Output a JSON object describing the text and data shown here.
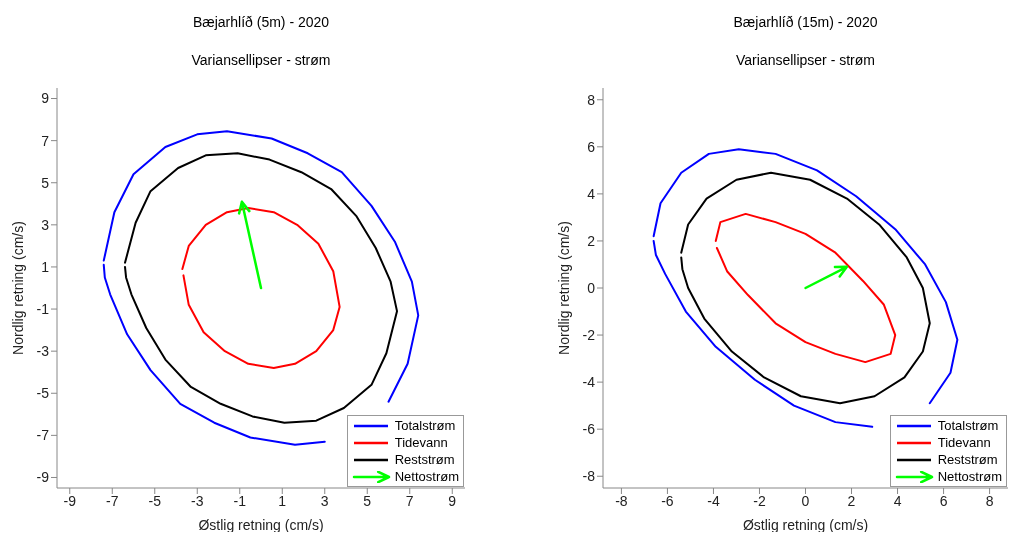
{
  "chart_data": [
    {
      "type": "line",
      "title": "Bæjarhlíð (5m) - 2020",
      "subtitle": "Variansellipser - strøm",
      "xlabel": "Østlig retning (cm/s)",
      "ylabel": "Nordlig retning (cm/s)",
      "xlim": [
        -9.6,
        9.6
      ],
      "ylim": [
        -9.5,
        9.5
      ],
      "xticks": [
        -9,
        -7,
        -5,
        -3,
        -1,
        1,
        3,
        5,
        7,
        9
      ],
      "yticks": [
        -9,
        -7,
        -5,
        -3,
        -1,
        1,
        3,
        5,
        7,
        9
      ],
      "grid": false,
      "legend": "bottom right",
      "marker": "none",
      "line_style": "solid",
      "series": [
        {
          "name": "Nettostrøm",
          "color": "#00ff00",
          "x": [
            0,
            -0.9
          ],
          "values": [
            0,
            4.1
          ]
        },
        {
          "name": "Totalstrøm",
          "color": "#0000ff",
          "x": [
            -7.4,
            -6.9,
            -6,
            -4.5,
            -3,
            -1.6,
            0.5,
            2.2,
            3.8,
            5.2,
            6.3,
            7.1,
            7.4,
            6.9,
            6,
            4.5,
            3,
            1.6,
            -0.5,
            -2.2,
            -3.8,
            -5.2,
            -6.3,
            -7.1,
            -7.35,
            -7.4
          ],
          "values": [
            1.3,
            3.6,
            5.4,
            6.7,
            7.3,
            7.45,
            7.1,
            6.4,
            5.5,
            3.9,
            2.2,
            0.3,
            -1.3,
            -3.6,
            -5.4,
            null,
            -7.3,
            -7.45,
            -7.1,
            -6.4,
            -5.5,
            -3.9,
            -2.2,
            -0.3,
            0.5,
            1.1
          ]
        },
        {
          "name": "Tidevann",
          "color": "#ff0000",
          "x": [
            -3.7,
            -3.4,
            -2.6,
            -1.6,
            -0.6,
            0.6,
            1.7,
            2.7,
            3.4,
            3.7,
            3.4,
            2.6,
            1.6,
            0.6,
            -0.6,
            -1.7,
            -2.7,
            -3.4,
            -3.65
          ],
          "values": [
            0.9,
            2,
            3,
            3.6,
            3.8,
            3.6,
            3,
            2.1,
            0.8,
            -0.9,
            -2,
            -3,
            -3.6,
            -3.8,
            -3.6,
            -3,
            -2.1,
            -0.8,
            0.6
          ]
        },
        {
          "name": "Reststrøm",
          "color": "#000000",
          "x": [
            -6.4,
            -5.9,
            -5.2,
            -3.9,
            -2.6,
            -1.1,
            0.4,
            1.9,
            3.3,
            4.5,
            5.4,
            6.1,
            6.4,
            5.9,
            5.2,
            3.9,
            2.6,
            1.1,
            -0.4,
            -1.9,
            -3.3,
            -4.5,
            -5.4,
            -6.1,
            -6.35,
            -6.4
          ],
          "values": [
            1.2,
            3.1,
            4.6,
            5.7,
            6.3,
            6.4,
            6.1,
            5.5,
            4.7,
            3.4,
            1.9,
            0.3,
            -1.1,
            -3.1,
            -4.6,
            -5.7,
            -6.3,
            -6.4,
            -6.1,
            -5.5,
            -4.7,
            -3.4,
            -1.9,
            -0.3,
            0.5,
            1
          ]
        }
      ]
    },
    {
      "type": "line",
      "title": "Bæjarhlíð (15m) - 2020",
      "subtitle": "Variansellipser - strøm",
      "xlabel": "Østlig retning (cm/s)",
      "ylabel": "Nordlig retning (cm/s)",
      "xlim": [
        -8.8,
        8.8
      ],
      "ylim": [
        -8.5,
        8.5
      ],
      "xticks": [
        -8,
        -6,
        -4,
        -2,
        0,
        2,
        4,
        6,
        8
      ],
      "yticks": [
        -8,
        -6,
        -4,
        -2,
        0,
        2,
        4,
        6,
        8
      ],
      "grid": false,
      "legend": "bottom right",
      "marker": "none",
      "line_style": "solid",
      "series": [
        {
          "name": "Nettostrøm",
          "color": "#00ff00",
          "x": [
            0,
            1.8
          ],
          "values": [
            0,
            0.9
          ]
        },
        {
          "name": "Totalstrøm",
          "color": "#0000ff",
          "x": [
            -6.6,
            -6.3,
            -5.4,
            -4.2,
            -2.9,
            -1.3,
            0.5,
            2.2,
            3.9,
            5.2,
            6.1,
            6.6,
            6.3,
            5.4,
            4.2,
            2.9,
            1.3,
            -0.5,
            -2.2,
            -3.9,
            -5.2,
            -6.1,
            -6.5,
            -6.6
          ],
          "values": [
            2.2,
            3.6,
            4.9,
            5.7,
            5.9,
            5.7,
            5,
            3.9,
            2.5,
            1,
            -0.6,
            -2.2,
            -3.6,
            -4.9,
            null,
            -5.9,
            -5.7,
            -5,
            -3.9,
            -2.5,
            -1,
            0.6,
            1.4,
            2
          ]
        },
        {
          "name": "Tidevann",
          "color": "#ff0000",
          "x": [
            -3.9,
            -3.7,
            -2.6,
            -1.3,
            0,
            1.3,
            2.5,
            3.4,
            3.9,
            3.7,
            2.6,
            1.3,
            0,
            -1.3,
            -2.5,
            -3.4,
            -3.85
          ],
          "values": [
            2,
            2.8,
            3.15,
            2.8,
            2.3,
            1.5,
            0.3,
            -0.7,
            -2,
            -2.8,
            -3.15,
            -2.8,
            -2.3,
            -1.5,
            -0.3,
            0.7,
            1.7
          ]
        },
        {
          "name": "Reststrøm",
          "color": "#000000",
          "x": [
            -5.4,
            -5.1,
            -4.3,
            -3,
            -1.5,
            0.2,
            1.8,
            3.2,
            4.4,
            5.1,
            5.4,
            5.1,
            4.3,
            3,
            1.5,
            -0.2,
            -1.8,
            -3.2,
            -4.4,
            -5.1,
            -5.35,
            -5.4
          ],
          "values": [
            1.5,
            2.7,
            3.8,
            4.6,
            4.9,
            4.6,
            3.8,
            2.7,
            1.3,
            0,
            -1.5,
            -2.7,
            -3.8,
            -4.6,
            -4.9,
            -4.6,
            -3.8,
            -2.7,
            -1.3,
            0,
            0.8,
            1.3
          ]
        }
      ]
    }
  ]
}
